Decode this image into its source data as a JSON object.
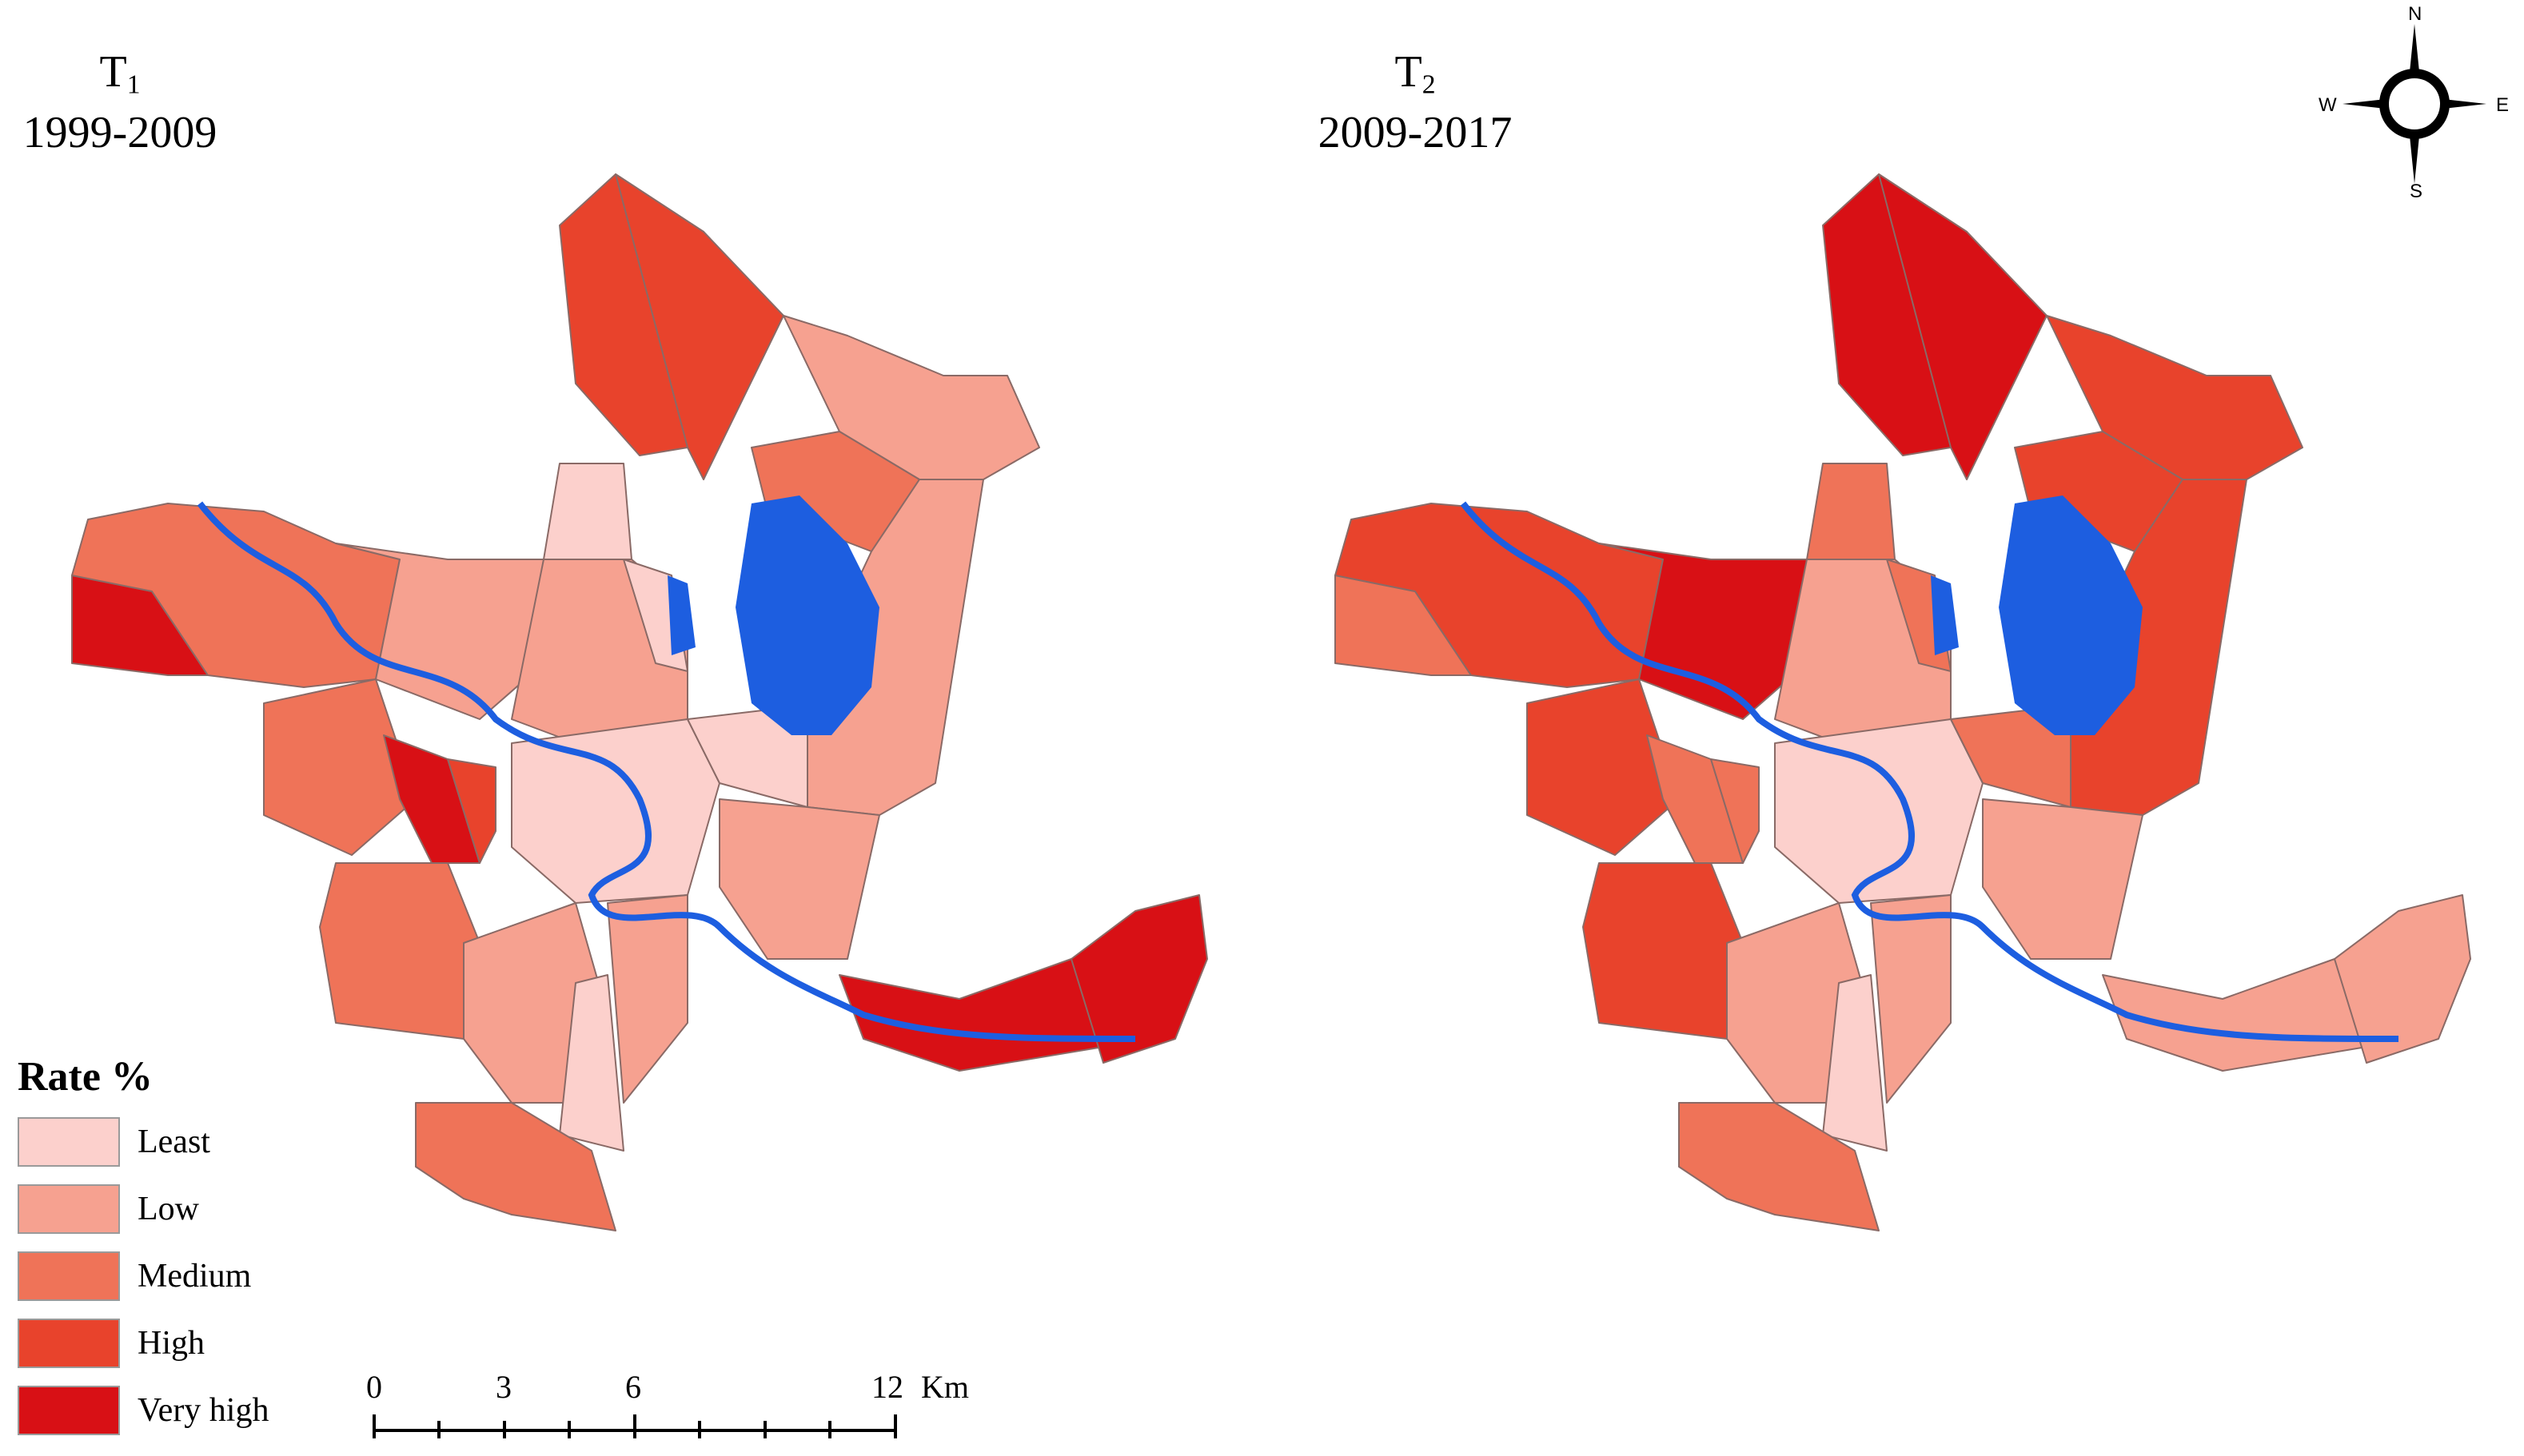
{
  "maps": [
    {
      "id": "T1",
      "title_main": "T",
      "title_sub": "1",
      "period": "1999-2009"
    },
    {
      "id": "T2",
      "title_main": "T",
      "title_sub": "2",
      "period": "2009-2017"
    }
  ],
  "legend": {
    "title": "Rate %",
    "classes": [
      {
        "label": "Least",
        "color": "#fcd0cc"
      },
      {
        "label": "Low",
        "color": "#f6a190"
      },
      {
        "label": "Medium",
        "color": "#ef7358"
      },
      {
        "label": "High",
        "color": "#e8432c"
      },
      {
        "label": "Very high",
        "color": "#d81015"
      }
    ]
  },
  "water_color": "#1d5ee0",
  "scale_bar": {
    "labels": [
      "0",
      "3",
      "6",
      "12"
    ],
    "unit": "Km"
  },
  "compass": {
    "n": "N",
    "s": "S",
    "e": "E",
    "w": "W"
  }
}
